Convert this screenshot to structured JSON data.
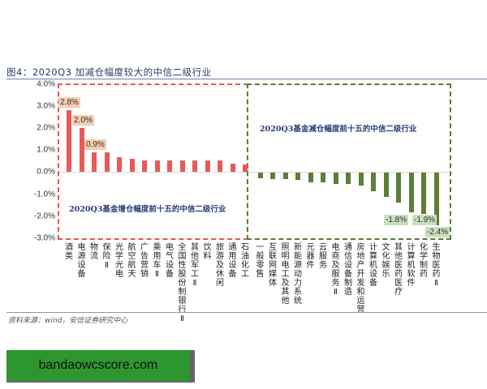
{
  "figure": {
    "title": "图4：2020Q3 加减仓幅度较大的中信二级行业",
    "source": "资料来源：wind，安信证券研究中心"
  },
  "watermark": "bandaowcscore.com",
  "colors": {
    "increase_bar": "#e8595a",
    "decrease_bar": "#5b7f35",
    "increase_box": "#e05a5a",
    "decrease_box": "#5a7a3a",
    "caption_text": "#2b3b7b"
  },
  "axis": {
    "yticks": [
      "4.0%",
      "3.0%",
      "2.0%",
      "1.0%",
      "0.0%",
      "-1.0%",
      "-2.0%",
      "-3.0%"
    ]
  },
  "annotations": {
    "increase_box_caption": "2020Q3基金增仓幅度前十五的中信二级行业",
    "decrease_box_caption": "2020Q3基金减仓幅度前十五的中信二级行业"
  },
  "value_labels": {
    "pos": [
      "2.8%",
      "2.0%",
      "0.9%"
    ],
    "neg": [
      "-1.8%",
      "-1.9%",
      "-2.4%"
    ]
  },
  "chart_data": {
    "type": "bar",
    "title": "图4：2020Q3 加减仓幅度较大的中信二级行业",
    "xlabel": "",
    "ylabel": "",
    "ylim": [
      -3.0,
      4.0
    ],
    "ytick_step": 1.0,
    "grid": false,
    "legend": null,
    "categories": [
      "酒类",
      "电源设备",
      "物流",
      "保险Ⅱ",
      "光学光电",
      "航空航天",
      "广告营销",
      "乘用车Ⅱ",
      "电气设备",
      "全国性股份制银行Ⅱ",
      "其他军工Ⅱ",
      "饮料",
      "旅游及休闲",
      "通用设备",
      "石油化工",
      "一般零售",
      "互联网媒体",
      "照明电工及其他",
      "新能源动力系统",
      "元器件",
      "云服务",
      "电商及服务Ⅱ",
      "通信设备制造",
      "房地产开发和运营",
      "计算机设备",
      "文化娱乐",
      "其他医药医疗",
      "计算机软件",
      "化学制药",
      "生物医药Ⅱ"
    ],
    "series": [
      {
        "name": "2020Q3基金增仓幅度前十五的中信二级行业",
        "values": [
          2.8,
          2.0,
          0.9,
          0.9,
          0.65,
          0.6,
          0.5,
          0.5,
          0.5,
          0.5,
          0.5,
          0.5,
          0.5,
          0.37,
          0.33,
          null,
          null,
          null,
          null,
          null,
          null,
          null,
          null,
          null,
          null,
          null,
          null,
          null,
          null,
          null
        ]
      },
      {
        "name": "2020Q3基金减仓幅度前十五的中信二级行业",
        "values": [
          null,
          null,
          null,
          null,
          null,
          null,
          null,
          null,
          null,
          null,
          null,
          null,
          null,
          null,
          null,
          -0.25,
          -0.3,
          -0.3,
          -0.35,
          -0.45,
          -0.45,
          -0.5,
          -0.5,
          -0.6,
          -0.85,
          -1.1,
          -1.35,
          -1.8,
          -1.9,
          -2.4
        ]
      }
    ],
    "data_labels": {
      "酒类": "2.8%",
      "电源设备": "2.0%",
      "物流": "0.9%",
      "计算机软件": "-1.8%",
      "化学制药": "-1.9%",
      "生物医药Ⅱ": "-2.4%"
    },
    "source": "资料来源：wind，安信证券研究中心"
  }
}
